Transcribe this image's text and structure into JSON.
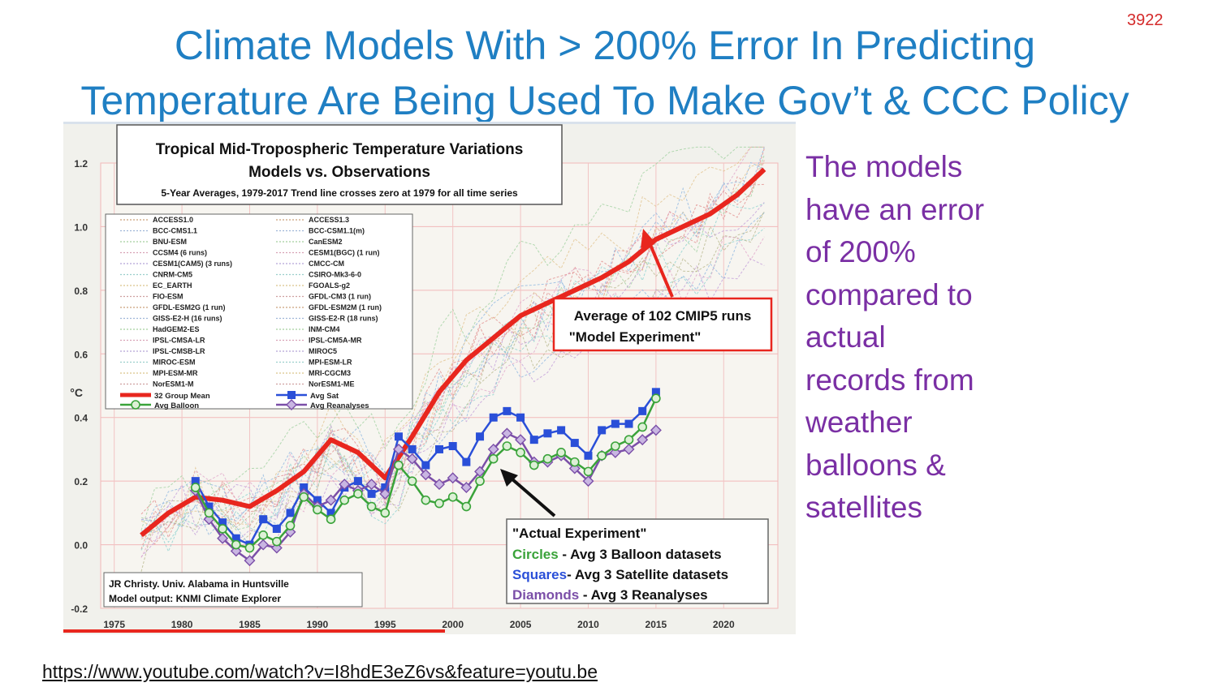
{
  "slide": {
    "title_line1": "Climate Models With > 200% Error In Predicting",
    "title_line2": "Temperature Are Being Used To Make Gov’t & CCC Policy",
    "number": "3922",
    "side_note_lines": [
      "The models",
      "have an error",
      "of 200%",
      "compared to",
      "actual",
      "records from",
      "weather",
      "balloons &",
      "satellites"
    ],
    "source_url": "https://www.youtube.com/watch?v=I8hdE3eZ6vs&feature=youtu.be"
  },
  "colors": {
    "title": "#1f7fc3",
    "side_note": "#7a2fa4",
    "model_mean": "#e8261e",
    "satellite": "#2a4fd8",
    "balloon": "#3aa33a",
    "reanalysis": "#7b4fa8"
  },
  "chart_data": {
    "type": "line",
    "title": "Tropical Mid-Tropospheric Temperature Variations",
    "subtitle": "Models vs. Observations",
    "note": "5-Year Averages, 1979-2017 Trend line crosses zero at 1979 for all time series",
    "ylabel": "°C",
    "xlim": [
      1974,
      2024
    ],
    "ylim": [
      -0.2,
      1.2
    ],
    "xticks": [
      "1975",
      "1980",
      "1985",
      "1990",
      "1995",
      "2000",
      "2005",
      "2010",
      "2015",
      "2020"
    ],
    "yticks": [
      "1.2",
      "1.0",
      "0.8",
      "0.6",
      "0.4",
      "0.2",
      "0.0",
      "-0.2"
    ],
    "grid": true,
    "legend_position": "top-left",
    "legend_left": [
      "ACCESS1.0",
      "BCC-CMS1.1",
      "BNU-ESM",
      "CCSM4 (6 runs)",
      "CESM1(CAM5) (3 runs)",
      "CNRM-CM5",
      "EC_EARTH",
      "FIO-ESM",
      "GFDL-ESM2G (1 run)",
      "GISS-E2-H (16 runs)",
      "HadGEM2-ES",
      "IPSL-CMSA-LR",
      "IPSL-CMSB-LR",
      "MIROC-ESM",
      "MPI-ESM-MR",
      "NorESM1-M"
    ],
    "legend_right": [
      "ACCESS1.3",
      "BCC-CSM1.1(m)",
      "CanESM2",
      "CESM1(BGC) (1 run)",
      "CMCC-CM",
      "CSIRO-Mk3-6-0",
      "FGOALS-g2",
      "GFDL-CM3 (1 run)",
      "GFDL-ESM2M (1 run)",
      "GISS-E2-R (18 runs)",
      "INM-CM4",
      "IPSL-CM5A-MR",
      "MIROC5",
      "MPI-ESM-LR",
      "MRI-CGCM3",
      "NorESM1-ME"
    ],
    "series": [
      {
        "name": "32 Group Mean",
        "color": "#e8261e",
        "x": [
          1977,
          1979,
          1981,
          1983,
          1985,
          1987,
          1989,
          1991,
          1993,
          1995,
          1997,
          1999,
          2001,
          2003,
          2005,
          2007,
          2009,
          2011,
          2013,
          2015,
          2017,
          2019,
          2021,
          2023
        ],
        "y": [
          0.03,
          0.1,
          0.15,
          0.14,
          0.12,
          0.17,
          0.23,
          0.33,
          0.29,
          0.21,
          0.34,
          0.48,
          0.58,
          0.65,
          0.72,
          0.76,
          0.8,
          0.84,
          0.89,
          0.96,
          1.0,
          1.04,
          1.1,
          1.18
        ]
      },
      {
        "name": "Avg Sat",
        "color": "#2a4fd8",
        "marker": "square",
        "x": [
          1981,
          1982,
          1983,
          1984,
          1985,
          1986,
          1987,
          1988,
          1989,
          1990,
          1991,
          1992,
          1993,
          1994,
          1995,
          1996,
          1997,
          1998,
          1999,
          2000,
          2001,
          2002,
          2003,
          2004,
          2005,
          2006,
          2007,
          2008,
          2009,
          2010,
          2011,
          2012,
          2013,
          2014,
          2015
        ],
        "y": [
          0.2,
          0.12,
          0.07,
          0.02,
          0.0,
          0.08,
          0.05,
          0.1,
          0.18,
          0.14,
          0.1,
          0.18,
          0.2,
          0.16,
          0.18,
          0.34,
          0.3,
          0.25,
          0.3,
          0.31,
          0.26,
          0.34,
          0.4,
          0.42,
          0.4,
          0.33,
          0.35,
          0.36,
          0.32,
          0.28,
          0.36,
          0.38,
          0.38,
          0.42,
          0.48
        ]
      },
      {
        "name": "Avg Balloon",
        "color": "#3aa33a",
        "marker": "circle",
        "x": [
          1981,
          1982,
          1983,
          1984,
          1985,
          1986,
          1987,
          1988,
          1989,
          1990,
          1991,
          1992,
          1993,
          1994,
          1995,
          1996,
          1997,
          1998,
          1999,
          2000,
          2001,
          2002,
          2003,
          2004,
          2005,
          2006,
          2007,
          2008,
          2009,
          2010,
          2011,
          2012,
          2013,
          2014,
          2015
        ],
        "y": [
          0.18,
          0.1,
          0.05,
          0.0,
          -0.01,
          0.03,
          0.01,
          0.06,
          0.15,
          0.11,
          0.08,
          0.14,
          0.16,
          0.12,
          0.1,
          0.25,
          0.2,
          0.14,
          0.13,
          0.15,
          0.12,
          0.2,
          0.27,
          0.31,
          0.29,
          0.25,
          0.27,
          0.29,
          0.26,
          0.23,
          0.28,
          0.31,
          0.33,
          0.37,
          0.46
        ]
      },
      {
        "name": "Avg Reanalyses",
        "color": "#7b4fa8",
        "marker": "diamond",
        "x": [
          1981,
          1982,
          1983,
          1984,
          1985,
          1986,
          1987,
          1988,
          1989,
          1990,
          1991,
          1992,
          1993,
          1994,
          1995,
          1996,
          1997,
          1998,
          1999,
          2000,
          2001,
          2002,
          2003,
          2004,
          2005,
          2006,
          2007,
          2008,
          2009,
          2010,
          2011,
          2012,
          2013,
          2014,
          2015
        ],
        "y": [
          0.17,
          0.08,
          0.02,
          -0.02,
          -0.05,
          0.0,
          -0.01,
          0.04,
          0.16,
          0.12,
          0.14,
          0.19,
          0.17,
          0.19,
          0.16,
          0.3,
          0.27,
          0.22,
          0.19,
          0.21,
          0.18,
          0.23,
          0.3,
          0.35,
          0.33,
          0.26,
          0.26,
          0.28,
          0.24,
          0.2,
          0.28,
          0.29,
          0.3,
          0.33,
          0.36
        ]
      }
    ],
    "annotations": {
      "model_box_line1": "Average of 102 CMIP5 runs",
      "model_box_line2": "\"Model Experiment\"",
      "obs_box_title": "\"Actual Experiment\"",
      "obs_circles_label": "Circles",
      "obs_circles_text": " - Avg 3 Balloon datasets",
      "obs_squares_label": "Squares",
      "obs_squares_text": "- Avg 3 Satellite datasets",
      "obs_diamonds_label": "Diamonds",
      "obs_diamonds_text": " - Avg 3 Reanalyses",
      "credit_line1": "JR Christy. Univ. Alabama in Huntsville",
      "credit_line2": "Model output: KNMI Climate Explorer"
    }
  }
}
